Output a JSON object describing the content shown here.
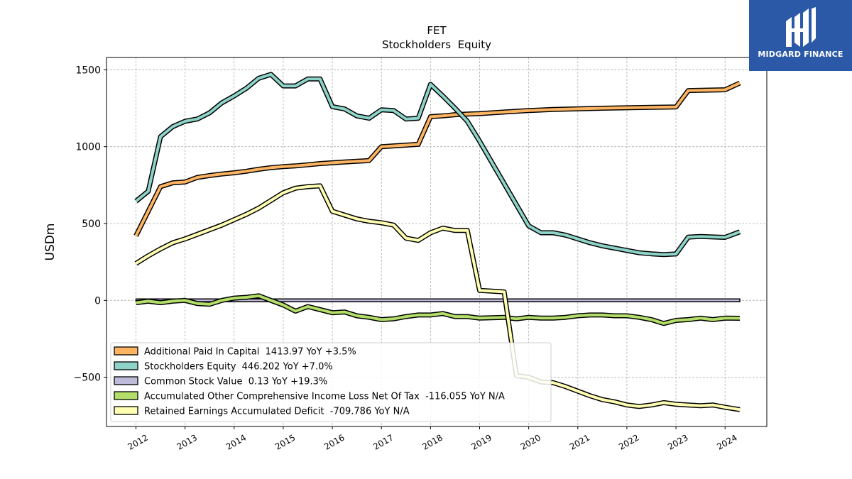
{
  "logo": {
    "text": "MIDGARD FINANCE"
  },
  "chart_data": {
    "type": "line",
    "title": "FET",
    "subtitle": "Stockholders  Equity",
    "ylabel": "USDm",
    "xlabel": "",
    "ylim": [
      -820,
      1580
    ],
    "xlim": [
      2011.4,
      2024.85
    ],
    "yticks": [
      -500,
      0,
      500,
      1000,
      1500
    ],
    "yticklabels": [
      "−500",
      "0",
      "500",
      "1000",
      "1500"
    ],
    "xticks": [
      2012,
      2013,
      2014,
      2015,
      2016,
      2017,
      2018,
      2019,
      2020,
      2021,
      2022,
      2023,
      2024
    ],
    "xticklabels": [
      "2012",
      "2013",
      "2014",
      "2015",
      "2016",
      "2017",
      "2018",
      "2019",
      "2020",
      "2021",
      "2022",
      "2023",
      "2024"
    ],
    "grid": true,
    "legend_position": "lower-left",
    "series": [
      {
        "name": "Additional Paid In Capital",
        "legend_label": "Additional Paid In Capital  1413.97 YoY +3.5%",
        "color": "#fdb462",
        "points": [
          [
            2012.0,
            420
          ],
          [
            2012.25,
            580
          ],
          [
            2012.5,
            740
          ],
          [
            2012.75,
            765
          ],
          [
            2013.0,
            770
          ],
          [
            2013.25,
            800
          ],
          [
            2013.5,
            812
          ],
          [
            2013.75,
            822
          ],
          [
            2014.0,
            830
          ],
          [
            2014.25,
            840
          ],
          [
            2014.5,
            853
          ],
          [
            2014.75,
            863
          ],
          [
            2015.0,
            870
          ],
          [
            2015.25,
            875
          ],
          [
            2015.5,
            882
          ],
          [
            2015.75,
            890
          ],
          [
            2016.0,
            895
          ],
          [
            2016.25,
            900
          ],
          [
            2016.5,
            905
          ],
          [
            2016.75,
            910
          ],
          [
            2017.0,
            1000
          ],
          [
            2017.25,
            1005
          ],
          [
            2017.5,
            1010
          ],
          [
            2017.75,
            1015
          ],
          [
            2018.0,
            1195
          ],
          [
            2018.25,
            1200
          ],
          [
            2018.5,
            1208
          ],
          [
            2018.75,
            1212
          ],
          [
            2019.0,
            1215
          ],
          [
            2019.5,
            1225
          ],
          [
            2020.0,
            1235
          ],
          [
            2020.5,
            1242
          ],
          [
            2021.0,
            1246
          ],
          [
            2021.5,
            1250
          ],
          [
            2022.0,
            1253
          ],
          [
            2022.5,
            1256
          ],
          [
            2023.0,
            1258
          ],
          [
            2023.25,
            1365
          ],
          [
            2023.5,
            1367
          ],
          [
            2024.0,
            1370
          ],
          [
            2024.3,
            1414
          ]
        ]
      },
      {
        "name": "Stockholders Equity",
        "legend_label": "Stockholders Equity  446.202 YoY +7.0%",
        "color": "#8dd3c7",
        "points": [
          [
            2012.0,
            645
          ],
          [
            2012.25,
            710
          ],
          [
            2012.5,
            1065
          ],
          [
            2012.75,
            1130
          ],
          [
            2013.0,
            1165
          ],
          [
            2013.25,
            1180
          ],
          [
            2013.5,
            1220
          ],
          [
            2013.75,
            1285
          ],
          [
            2014.0,
            1330
          ],
          [
            2014.25,
            1380
          ],
          [
            2014.5,
            1445
          ],
          [
            2014.75,
            1470
          ],
          [
            2015.0,
            1395
          ],
          [
            2015.25,
            1395
          ],
          [
            2015.5,
            1440
          ],
          [
            2015.75,
            1440
          ],
          [
            2016.0,
            1260
          ],
          [
            2016.25,
            1245
          ],
          [
            2016.5,
            1200
          ],
          [
            2016.75,
            1185
          ],
          [
            2017.0,
            1240
          ],
          [
            2017.25,
            1235
          ],
          [
            2017.5,
            1180
          ],
          [
            2017.75,
            1185
          ],
          [
            2018.0,
            1405
          ],
          [
            2018.25,
            1330
          ],
          [
            2018.5,
            1250
          ],
          [
            2018.75,
            1165
          ],
          [
            2019.0,
            1035
          ],
          [
            2019.5,
            760
          ],
          [
            2020.0,
            485
          ],
          [
            2020.25,
            440
          ],
          [
            2020.5,
            440
          ],
          [
            2020.75,
            425
          ],
          [
            2021.0,
            400
          ],
          [
            2021.25,
            375
          ],
          [
            2021.5,
            355
          ],
          [
            2021.75,
            340
          ],
          [
            2022.0,
            325
          ],
          [
            2022.25,
            310
          ],
          [
            2022.5,
            303
          ],
          [
            2022.75,
            298
          ],
          [
            2023.0,
            302
          ],
          [
            2023.25,
            412
          ],
          [
            2023.5,
            416
          ],
          [
            2024.0,
            410
          ],
          [
            2024.3,
            446
          ]
        ]
      },
      {
        "name": "Common Stock Value",
        "legend_label": "Common Stock Value  0.13 YoY +19.3%",
        "color": "#bebada",
        "points": [
          [
            2012.0,
            5
          ],
          [
            2024.3,
            0.13
          ]
        ],
        "band": [
          [
            2012.0,
            -8,
            10
          ],
          [
            2024.3,
            -8,
            10
          ]
        ]
      },
      {
        "name": "Accumulated Other Comprehensive Income Loss Net Of Tax",
        "legend_label": "Accumulated Other Comprehensive Income Loss Net Of Tax  -116.055 YoY N/A",
        "color": "#b3de69",
        "points": [
          [
            2012.0,
            -15
          ],
          [
            2012.25,
            -5
          ],
          [
            2012.5,
            -15
          ],
          [
            2012.75,
            -5
          ],
          [
            2013.0,
            0
          ],
          [
            2013.25,
            -20
          ],
          [
            2013.5,
            -25
          ],
          [
            2013.75,
            0
          ],
          [
            2014.0,
            15
          ],
          [
            2014.25,
            20
          ],
          [
            2014.5,
            30
          ],
          [
            2014.75,
            0
          ],
          [
            2015.0,
            -30
          ],
          [
            2015.25,
            -70
          ],
          [
            2015.5,
            -40
          ],
          [
            2015.75,
            -60
          ],
          [
            2016.0,
            -80
          ],
          [
            2016.25,
            -75
          ],
          [
            2016.5,
            -100
          ],
          [
            2016.75,
            -110
          ],
          [
            2017.0,
            -125
          ],
          [
            2017.25,
            -120
          ],
          [
            2017.5,
            -105
          ],
          [
            2017.75,
            -95
          ],
          [
            2018.0,
            -95
          ],
          [
            2018.25,
            -85
          ],
          [
            2018.5,
            -105
          ],
          [
            2018.75,
            -105
          ],
          [
            2019.0,
            -115
          ],
          [
            2019.5,
            -110
          ],
          [
            2019.75,
            -120
          ],
          [
            2020.0,
            -110
          ],
          [
            2020.25,
            -115
          ],
          [
            2020.5,
            -115
          ],
          [
            2020.75,
            -110
          ],
          [
            2021.0,
            -100
          ],
          [
            2021.25,
            -95
          ],
          [
            2021.5,
            -95
          ],
          [
            2021.75,
            -100
          ],
          [
            2022.0,
            -100
          ],
          [
            2022.25,
            -110
          ],
          [
            2022.5,
            -125
          ],
          [
            2022.75,
            -150
          ],
          [
            2023.0,
            -130
          ],
          [
            2023.25,
            -125
          ],
          [
            2023.5,
            -115
          ],
          [
            2023.75,
            -125
          ],
          [
            2024.0,
            -115
          ],
          [
            2024.3,
            -116
          ]
        ]
      },
      {
        "name": "Retained Earnings Accumulated Deficit",
        "legend_label": "Retained Earnings Accumulated Deficit  -709.786 YoY N/A",
        "color": "#ffffb3",
        "points": [
          [
            2012.0,
            240
          ],
          [
            2012.25,
            290
          ],
          [
            2012.5,
            335
          ],
          [
            2012.75,
            375
          ],
          [
            2013.0,
            400
          ],
          [
            2013.25,
            430
          ],
          [
            2013.5,
            460
          ],
          [
            2013.75,
            490
          ],
          [
            2014.0,
            525
          ],
          [
            2014.25,
            560
          ],
          [
            2014.5,
            600
          ],
          [
            2014.75,
            650
          ],
          [
            2015.0,
            700
          ],
          [
            2015.25,
            730
          ],
          [
            2015.5,
            740
          ],
          [
            2015.75,
            745
          ],
          [
            2016.0,
            580
          ],
          [
            2016.25,
            555
          ],
          [
            2016.5,
            530
          ],
          [
            2016.75,
            515
          ],
          [
            2017.0,
            505
          ],
          [
            2017.25,
            490
          ],
          [
            2017.5,
            405
          ],
          [
            2017.75,
            390
          ],
          [
            2018.0,
            440
          ],
          [
            2018.25,
            470
          ],
          [
            2018.5,
            455
          ],
          [
            2018.75,
            455
          ],
          [
            2019.0,
            65
          ],
          [
            2019.25,
            60
          ],
          [
            2019.5,
            55
          ],
          [
            2019.75,
            -490
          ],
          [
            2020.0,
            -500
          ],
          [
            2020.25,
            -530
          ],
          [
            2020.5,
            -535
          ],
          [
            2020.75,
            -560
          ],
          [
            2021.0,
            -590
          ],
          [
            2021.25,
            -620
          ],
          [
            2021.5,
            -645
          ],
          [
            2021.75,
            -660
          ],
          [
            2022.0,
            -680
          ],
          [
            2022.25,
            -690
          ],
          [
            2022.5,
            -680
          ],
          [
            2022.75,
            -665
          ],
          [
            2023.0,
            -675
          ],
          [
            2023.25,
            -680
          ],
          [
            2023.5,
            -685
          ],
          [
            2023.75,
            -680
          ],
          [
            2024.0,
            -695
          ],
          [
            2024.3,
            -710
          ]
        ]
      }
    ]
  }
}
